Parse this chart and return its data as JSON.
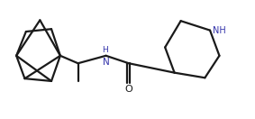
{
  "bg_color": "#ffffff",
  "line_color": "#1a1a1a",
  "nh_color": "#3333aa",
  "line_width": 1.6,
  "figsize": [
    2.83,
    1.32
  ],
  "dpi": 100,
  "xlim": [
    0,
    10.0
  ],
  "ylim": [
    0.2,
    4.2
  ]
}
